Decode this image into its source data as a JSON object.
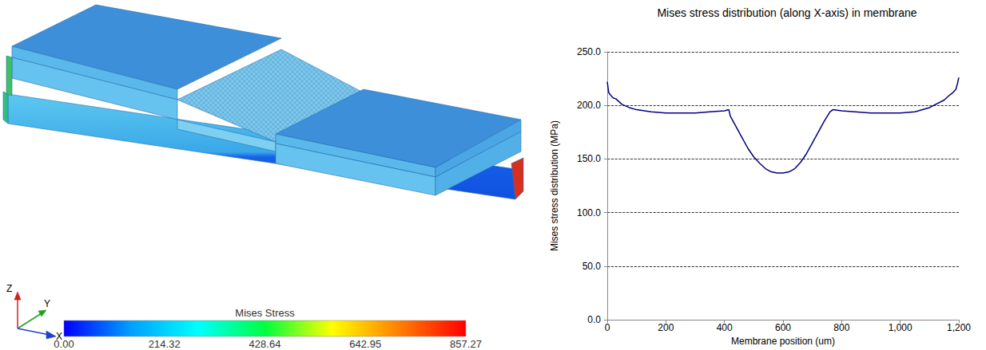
{
  "chart_data": {
    "type": "line",
    "title": "Mises stress distribution (along X-axis) in membrane",
    "x_label": "Membrane position (um)",
    "y_label": "Mises stress distribution (MPa)",
    "x": [
      0,
      5,
      10,
      20,
      30,
      50,
      75,
      100,
      150,
      200,
      300,
      350,
      400,
      415,
      420,
      430,
      440,
      460,
      480,
      500,
      520,
      540,
      560,
      580,
      600,
      620,
      640,
      660,
      680,
      700,
      720,
      740,
      760,
      770,
      800,
      900,
      1000,
      1050,
      1100,
      1150,
      1170,
      1180,
      1190,
      1195,
      1200
    ],
    "values": [
      222,
      212,
      210,
      207,
      206,
      201,
      198,
      196,
      194,
      193,
      193,
      194,
      195,
      196,
      190,
      185,
      180,
      170,
      160,
      152,
      146,
      141,
      138,
      137,
      137,
      138,
      141,
      147,
      155,
      165,
      175,
      185,
      194,
      196,
      195,
      193,
      193,
      194,
      198,
      205,
      210,
      212,
      215,
      220,
      226
    ],
    "color": "#000080",
    "xlim": [
      0,
      1200
    ],
    "xticks": [
      0,
      200,
      400,
      600,
      800,
      1000,
      1200
    ],
    "ylim": [
      0,
      250
    ],
    "yticks": [
      {
        "value": 0,
        "label": "0.0"
      },
      {
        "value": 50,
        "label": "50.0"
      },
      {
        "value": 100,
        "label": "100.0"
      },
      {
        "value": 150,
        "label": "150.0"
      },
      {
        "value": 200,
        "label": "200.0"
      },
      {
        "value": 250,
        "label": "250.0"
      }
    ],
    "grid": true,
    "line_style": "solid"
  },
  "contour_plot": {
    "colorbar_title": "Mises Stress",
    "colorbar_range": [
      0,
      857.27
    ],
    "colorbar_ticks": [
      {
        "value": 0,
        "label": "0.00"
      },
      {
        "value": 214.32,
        "label": "214.32"
      },
      {
        "value": 428.64,
        "label": "428.64"
      },
      {
        "value": 642.95,
        "label": "642.95"
      },
      {
        "value": 857.27,
        "label": "857.27"
      }
    ],
    "colors": [
      "#0000ff",
      "#00a0ff",
      "#00ffff",
      "#00ff40",
      "#ffff00",
      "#ff8000",
      "#ff0000"
    ],
    "axis_labels": {
      "x": "X",
      "y": "Y",
      "z": "Z"
    }
  }
}
